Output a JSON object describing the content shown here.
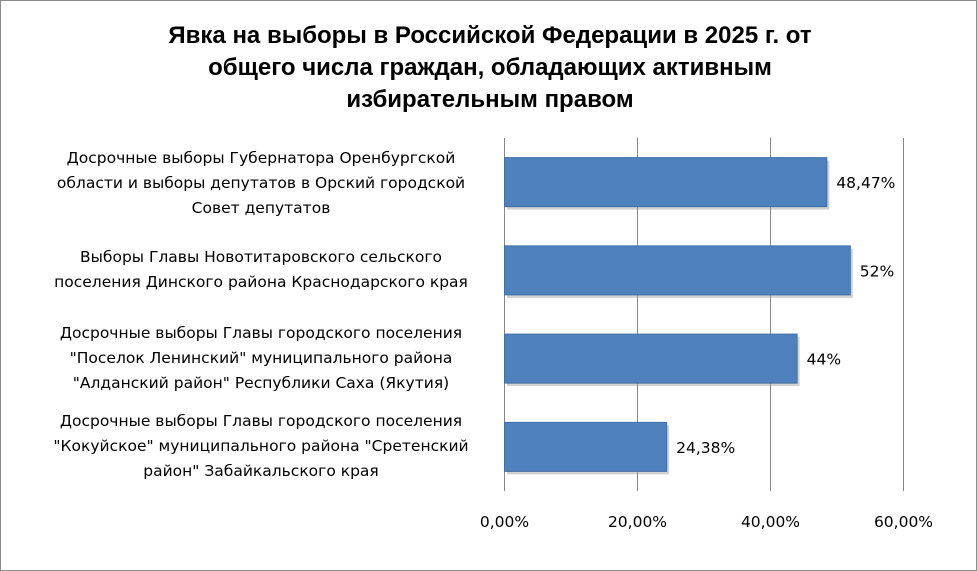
{
  "chart_data": {
    "type": "bar",
    "orientation": "horizontal",
    "title_lines": [
      "Явка на выборы в Российской Федерации в 2025 г. от",
      "общего числа граждан, обладающих активным",
      "избирательным правом"
    ],
    "categories": [
      [
        "Досрочные выборы Губернатора Оренбургской",
        "области и выборы депутатов в Орский городской",
        "Совет депутатов"
      ],
      [
        "Выборы Главы Новотитаровского сельского",
        "поселения Динского района Краснодарского края"
      ],
      [
        "Досрочные выборы Главы городского поселения",
        "\"Поселок Ленинский\" муниципального района",
        "\"Алданский район\" Республики Саха (Якутия)"
      ],
      [
        "Досрочные выборы Главы городского поселения",
        "\"Кокуйское\" муниципального района \"Сретенский",
        "район\" Забайкальского края"
      ]
    ],
    "values": [
      48.47,
      52,
      44,
      24.38
    ],
    "data_labels": [
      "48,47%",
      "52%",
      "44%",
      "24,38%"
    ],
    "x_ticks": [
      "0,00%",
      "20,00%",
      "40,00%",
      "60,00%"
    ],
    "xlim": [
      0,
      60
    ],
    "grid": true,
    "legend": "none",
    "bar_color": "#4f81bd",
    "grid_color": "#878787"
  }
}
